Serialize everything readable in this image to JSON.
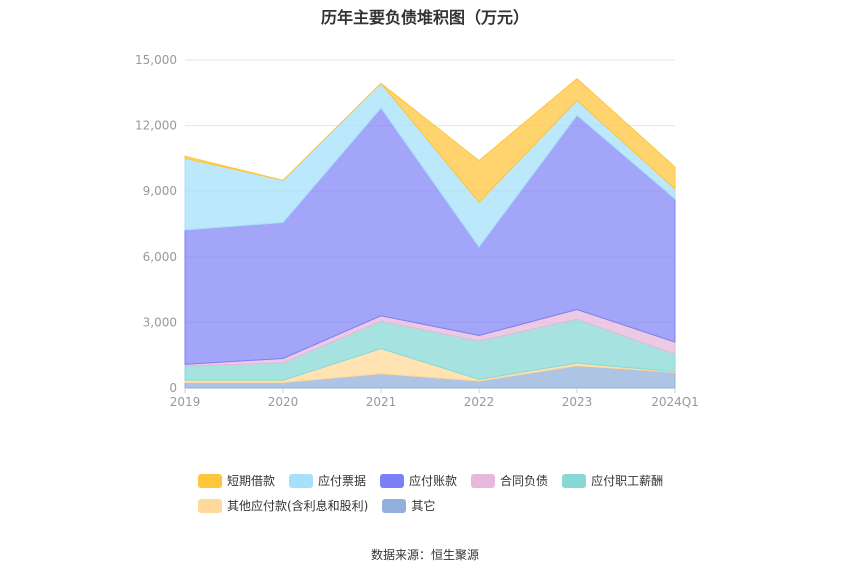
{
  "title": "历年主要负债堆积图（万元）",
  "source": "数据来源：恒生聚源",
  "chart_data": {
    "type": "area",
    "stacked": true,
    "categories": [
      "2019",
      "2020",
      "2021",
      "2022",
      "2023",
      "2024Q1"
    ],
    "y_ticks": [
      "0",
      "3,000",
      "6,000",
      "9,000",
      "12,000",
      "15,000"
    ],
    "ylim": [
      0,
      15000
    ],
    "grid": true,
    "legend_position": "bottom",
    "series": [
      {
        "name": "其它",
        "color": "#91b0dc",
        "values": [
          250,
          250,
          650,
          320,
          1020,
          720
        ]
      },
      {
        "name": "其他应付款(含利息和股利)",
        "color": "#ffd99a",
        "values": [
          100,
          100,
          1150,
          80,
          120,
          30
        ]
      },
      {
        "name": "应付职工薪酬",
        "color": "#88d9d5",
        "values": [
          650,
          800,
          1250,
          1750,
          2000,
          800
        ]
      },
      {
        "name": "合同负债",
        "color": "#e6b8db",
        "values": [
          80,
          200,
          250,
          250,
          450,
          550
        ]
      },
      {
        "name": "应付账款",
        "color": "#7c7ff7",
        "values": [
          6150,
          6220,
          9500,
          4050,
          8880,
          6550
        ]
      },
      {
        "name": "应付票据",
        "color": "#a6e0fb",
        "values": [
          3270,
          1930,
          1130,
          2050,
          680,
          450
        ]
      },
      {
        "name": "短期借款",
        "color": "#ffc53d",
        "values": [
          100,
          0,
          0,
          1900,
          1000,
          1000
        ]
      }
    ]
  }
}
